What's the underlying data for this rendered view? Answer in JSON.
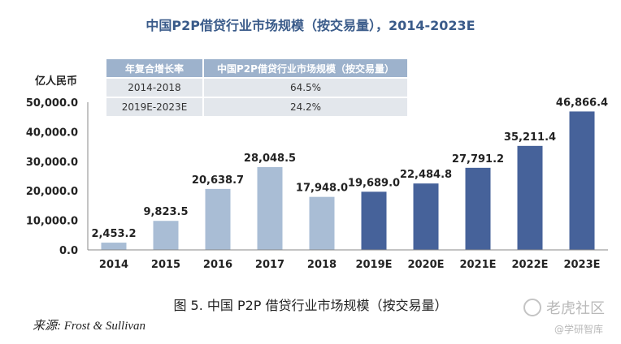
{
  "chart_data": {
    "type": "bar",
    "title": "中国P2P借贷行业市场规模（按交易量），2014-2023E",
    "ylabel": "亿人民币",
    "xlabel": "",
    "categories": [
      "2014",
      "2015",
      "2016",
      "2017",
      "2018",
      "2019E",
      "2020E",
      "2021E",
      "2022E",
      "2023E"
    ],
    "values": [
      2453.2,
      9823.5,
      20638.7,
      28048.5,
      17948.0,
      19689.0,
      22484.8,
      27791.2,
      35211.4,
      46866.4
    ],
    "value_labels": [
      "2,453.2",
      "9,823.5",
      "20,638.7",
      "28,048.5",
      "17,948.0",
      "19,689.0",
      "22,484.8",
      "27,791.2",
      "35,211.4",
      "46,866.4"
    ],
    "yticks": [
      "0.0",
      "10,000.0",
      "20,000.0",
      "30,000.0",
      "40,000.0",
      "50,000.0"
    ],
    "ylim": [
      0,
      50000
    ],
    "colors": {
      "actual": "#a9bdd5",
      "forecast": "#46629a"
    },
    "forecast_start_index": 5,
    "grid": false,
    "cagr_table": {
      "headers": [
        "年复合增长率",
        "中国P2P借贷行业市场规模（按交易量）"
      ],
      "rows": [
        [
          "2014-2018",
          "64.5%"
        ],
        [
          "2019E-2023E",
          "24.2%"
        ]
      ]
    }
  },
  "caption": "图 5. 中国 P2P 借贷行业市场规模（按交易量）",
  "source": "来源: Frost & Sullivan",
  "watermark": {
    "main": "老虎社区",
    "sub": "@学研智库"
  }
}
